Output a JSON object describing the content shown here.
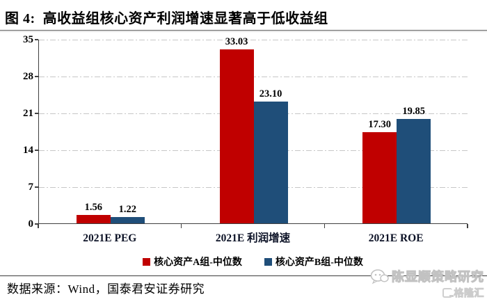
{
  "figure": {
    "title": "图 4:  高收益组核心资产利润增速显著高于低收益组",
    "source_note": "数据来源：Wind，国泰君安证券研究"
  },
  "chart_data": {
    "type": "bar",
    "categories": [
      "2021E PEG",
      "2021E 利润增速",
      "2021E ROE"
    ],
    "series": [
      {
        "name": "核心资产A组-中位数",
        "color": "#c00000",
        "values": [
          1.56,
          33.03,
          17.3
        ]
      },
      {
        "name": "核心资产B组-中位数",
        "color": "#1f4e79",
        "values": [
          1.22,
          23.1,
          19.85
        ]
      }
    ],
    "title": "",
    "xlabel": "",
    "ylabel": "",
    "ylim": [
      0,
      35
    ],
    "yticks": [
      0,
      7,
      14,
      21,
      28,
      35
    ],
    "grid": "horizontal-dash-dot",
    "legend_position": "bottom",
    "value_label_decimals": 2
  },
  "watermark": {
    "wechat_icon": "wechat-icon",
    "account_name": "陈显顺策略研究",
    "platform_name": "格隆汇"
  }
}
